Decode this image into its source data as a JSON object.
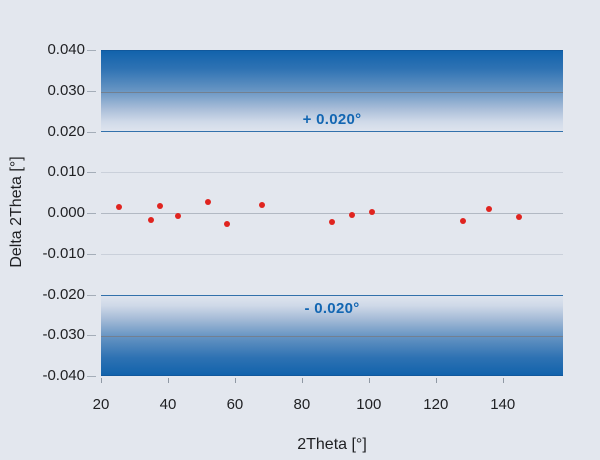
{
  "background_color": "#e3e7ee",
  "chart_data": {
    "type": "scatter",
    "title": "",
    "xlabel": "2Theta [°]",
    "ylabel": "Delta 2Theta [°]",
    "xlim": [
      20,
      158
    ],
    "ylim": [
      -0.04,
      0.04
    ],
    "x_ticks": [
      20,
      40,
      60,
      80,
      100,
      120,
      140
    ],
    "y_ticks": [
      0.04,
      0.03,
      0.02,
      0.01,
      0,
      -0.01,
      -0.02,
      -0.03,
      -0.04
    ],
    "y_tick_labels": [
      "0.040",
      "0.030",
      "0.020",
      "0.010",
      "0.000",
      "-0.010",
      "-0.020",
      "-0.030",
      "-0.040"
    ],
    "grid_y_values": [
      0.01,
      0,
      -0.01
    ],
    "series": [
      {
        "name": "delta-2theta-deviation",
        "marker": "circle",
        "color": "#e0241f",
        "points": [
          {
            "x": 25.5,
            "y": 0.0015
          },
          {
            "x": 35.0,
            "y": -0.0016
          },
          {
            "x": 37.7,
            "y": 0.0016
          },
          {
            "x": 43.0,
            "y": -0.0007
          },
          {
            "x": 52.0,
            "y": 0.0026
          },
          {
            "x": 57.5,
            "y": -0.0027
          },
          {
            "x": 68.0,
            "y": 0.002
          },
          {
            "x": 89.0,
            "y": -0.0023
          },
          {
            "x": 95.0,
            "y": -0.0005
          },
          {
            "x": 101.0,
            "y": 0.0002
          },
          {
            "x": 128.0,
            "y": -0.002
          },
          {
            "x": 136.0,
            "y": 0.001
          },
          {
            "x": 145.0,
            "y": -0.001
          }
        ]
      }
    ],
    "tolerance_bands": [
      {
        "from": 0.02,
        "to": 0.04,
        "midline": 0.03,
        "label": "+ 0.020°"
      },
      {
        "from": -0.04,
        "to": -0.02,
        "midline": -0.03,
        "label": "- 0.020°"
      }
    ],
    "colors": {
      "band_dark": "#1263ac",
      "band_light": "#dee4ee",
      "band_edge": "#11589c",
      "tolerance_line": "#3271ab",
      "midline": "#738090",
      "gridline": "#cad0da",
      "zero_line": "#b2b9c3",
      "marker": "#e0241f",
      "annotation": "#1266b2",
      "axis_text": "#1f2023"
    },
    "legend": "none",
    "grid": "horizontal-faint"
  }
}
